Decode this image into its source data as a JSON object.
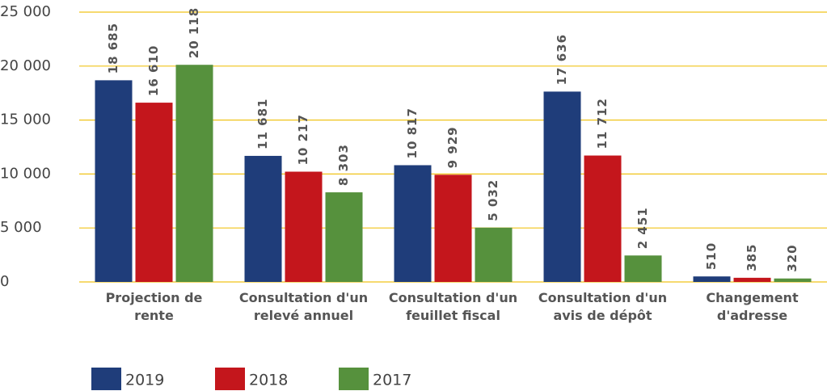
{
  "chart_data": {
    "type": "bar",
    "categories": [
      "Projection de rente",
      "Consultation d'un relevé annuel",
      "Consultation d'un feuillet fiscal",
      "Consultation d'un avis de dépôt",
      "Changement d'adresse"
    ],
    "series": [
      {
        "name": "2019",
        "color": "#1f3d7a",
        "values": [
          18685,
          11681,
          10817,
          17636,
          510
        ],
        "value_labels": [
          "18 685",
          "11 681",
          "10 817",
          "17 636",
          "510"
        ]
      },
      {
        "name": "2018",
        "color": "#c4161c",
        "values": [
          16610,
          10217,
          9929,
          11712,
          385
        ],
        "value_labels": [
          "16 610",
          "10 217",
          "9 929",
          "11 712",
          "385"
        ]
      },
      {
        "name": "2017",
        "color": "#56913d",
        "values": [
          20118,
          8303,
          5032,
          2451,
          320
        ],
        "value_labels": [
          "20 118",
          "8 303",
          "5 032",
          "2 451",
          "320"
        ]
      }
    ],
    "ylim": [
      0,
      25000
    ],
    "yticks": [
      0,
      {
        "value": 5000,
        "label": "5 000"
      },
      {
        "value": 10000,
        "label": "10 000"
      },
      {
        "value": 15000,
        "label": "15 000"
      },
      {
        "value": 20000,
        "label": "20 000"
      },
      {
        "value": 25000,
        "label": "25 000"
      }
    ],
    "grid": true
  }
}
